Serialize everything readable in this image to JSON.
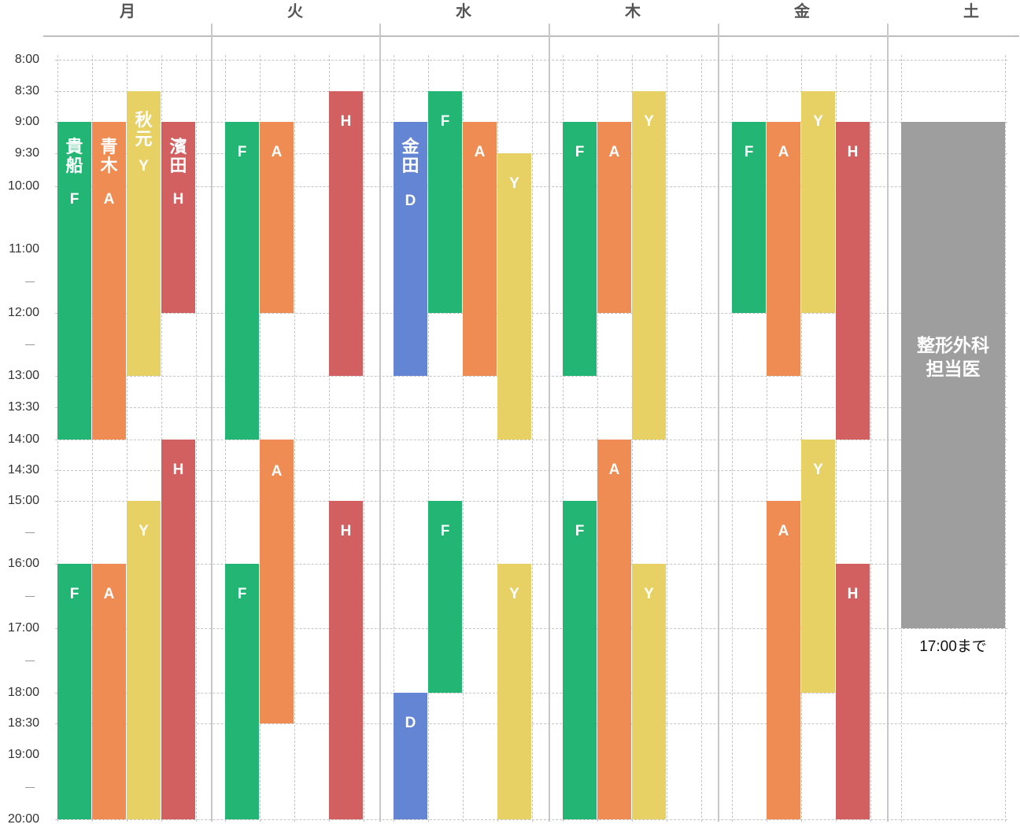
{
  "colors": {
    "F": "#22b573",
    "A": "#ef8c54",
    "Y": "#e7d165",
    "H": "#d36060",
    "D": "#6484d4",
    "saturday": "#9e9e9e"
  },
  "days": [
    "月",
    "火",
    "水",
    "木",
    "金",
    "土"
  ],
  "time_labels": [
    "8:00",
    "8:30",
    "9:00",
    "9:30",
    "10:00",
    "11:00",
    "12:00",
    "13:00",
    "13:30",
    "14:00",
    "14:30",
    "15:00",
    "16:00",
    "17:00",
    "18:00",
    "18:30",
    "19:00",
    "20:00"
  ],
  "doctors": {
    "F": "貴船",
    "A": "青木",
    "Y": "秋元",
    "H": "濱田",
    "D": "金田"
  },
  "schedule": [
    {
      "day": "月",
      "blocks": [
        {
          "doc": "F",
          "start": "9:00",
          "end": "14:00",
          "show_name": true
        },
        {
          "doc": "A",
          "start": "9:00",
          "end": "14:00",
          "show_name": true
        },
        {
          "doc": "Y",
          "start": "8:30",
          "end": "13:00",
          "show_name": true
        },
        {
          "doc": "H",
          "start": "9:00",
          "end": "12:00",
          "show_name": true
        },
        {
          "doc": "F",
          "start": "16:00",
          "end": "20:00"
        },
        {
          "doc": "A",
          "start": "16:00",
          "end": "20:00"
        },
        {
          "doc": "Y",
          "start": "15:00",
          "end": "20:00"
        },
        {
          "doc": "H",
          "start": "14:00",
          "end": "20:00"
        }
      ]
    },
    {
      "day": "火",
      "blocks": [
        {
          "doc": "F",
          "start": "9:00",
          "end": "14:00"
        },
        {
          "doc": "A",
          "start": "9:00",
          "end": "12:00"
        },
        {
          "doc": "H",
          "start": "8:30",
          "end": "13:00"
        },
        {
          "doc": "A",
          "start": "14:00",
          "end": "18:30"
        },
        {
          "doc": "H",
          "start": "15:00",
          "end": "20:00"
        },
        {
          "doc": "F",
          "start": "16:00",
          "end": "20:00"
        }
      ]
    },
    {
      "day": "水",
      "blocks": [
        {
          "doc": "D",
          "start": "9:00",
          "end": "13:00",
          "show_name": true
        },
        {
          "doc": "F",
          "start": "8:30",
          "end": "12:00"
        },
        {
          "doc": "A",
          "start": "9:00",
          "end": "13:00"
        },
        {
          "doc": "Y",
          "start": "9:30",
          "end": "14:00"
        },
        {
          "doc": "F",
          "start": "15:00",
          "end": "18:00"
        },
        {
          "doc": "Y",
          "start": "16:00",
          "end": "20:00"
        },
        {
          "doc": "D",
          "start": "18:00",
          "end": "20:00"
        }
      ]
    },
    {
      "day": "木",
      "blocks": [
        {
          "doc": "F",
          "start": "9:00",
          "end": "13:00"
        },
        {
          "doc": "A",
          "start": "9:00",
          "end": "12:00"
        },
        {
          "doc": "Y",
          "start": "8:30",
          "end": "14:00"
        },
        {
          "doc": "A",
          "start": "14:00",
          "end": "20:00"
        },
        {
          "doc": "F",
          "start": "15:00",
          "end": "20:00"
        },
        {
          "doc": "Y",
          "start": "16:00",
          "end": "20:00"
        }
      ]
    },
    {
      "day": "金",
      "blocks": [
        {
          "doc": "F",
          "start": "9:00",
          "end": "12:00"
        },
        {
          "doc": "A",
          "start": "9:00",
          "end": "13:00"
        },
        {
          "doc": "Y",
          "start": "8:30",
          "end": "12:00"
        },
        {
          "doc": "H",
          "start": "9:00",
          "end": "14:00"
        },
        {
          "doc": "Y",
          "start": "14:00",
          "end": "18:00"
        },
        {
          "doc": "A",
          "start": "15:00",
          "end": "20:00"
        },
        {
          "doc": "H",
          "start": "16:00",
          "end": "20:00"
        }
      ]
    }
  ],
  "saturday": {
    "label": "整形外科\n担当医",
    "start": "9:00",
    "end": "17:00",
    "note": "17:00まで"
  }
}
